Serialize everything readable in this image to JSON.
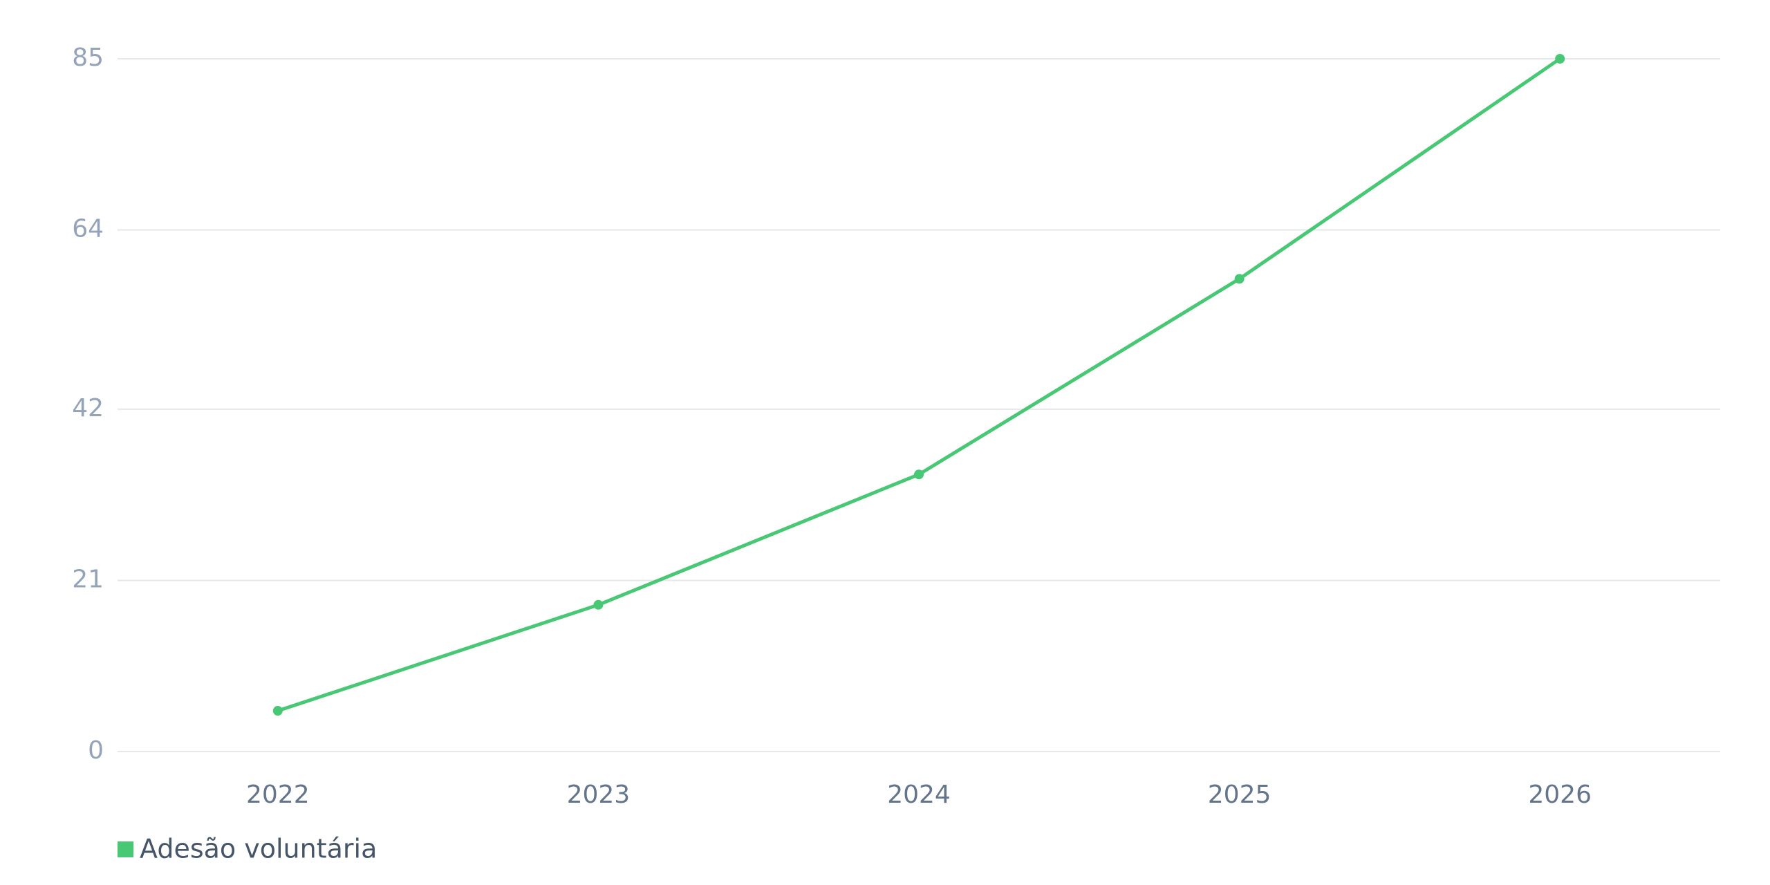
{
  "chart_data": {
    "type": "line",
    "categories": [
      "2022",
      "2023",
      "2024",
      "2025",
      "2026"
    ],
    "series": [
      {
        "name": "Adesão voluntária",
        "color": "#48c774",
        "values": [
          5,
          18,
          34,
          58,
          85
        ]
      }
    ],
    "ylim": [
      0,
      85
    ],
    "yticks": [
      0,
      21,
      42,
      64,
      85
    ],
    "grid": true,
    "legend": "bottom-left"
  }
}
